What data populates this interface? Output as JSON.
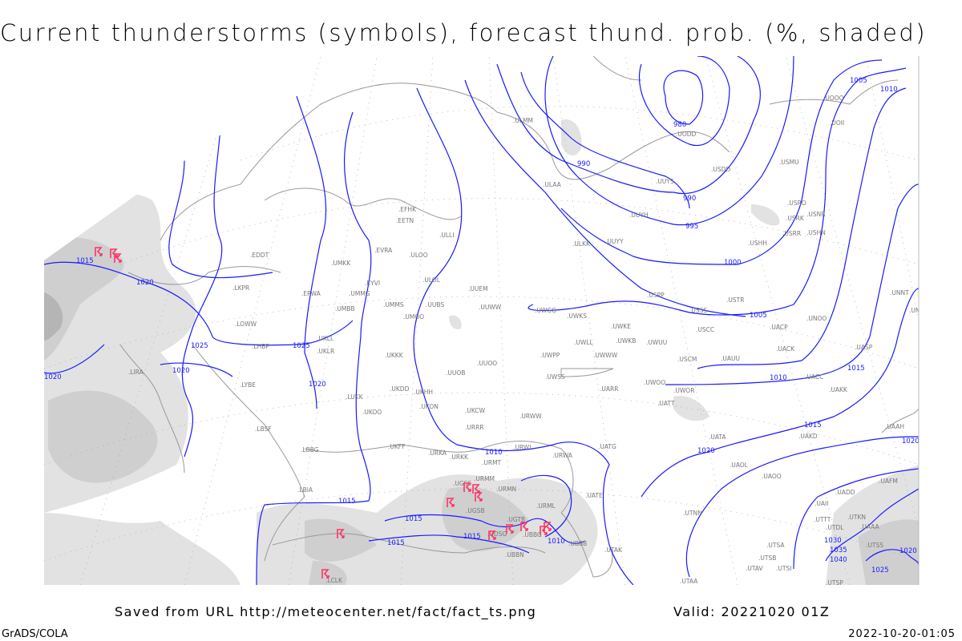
{
  "title": "Current thunderstorms (symbols), forecast thund. prob. (%, shaded)",
  "footer": {
    "saved": "Saved from URL http://meteocenter.net/fact/fact_ts.png",
    "valid": "Valid: 20221020 01Z",
    "software": "GrADS/COLA",
    "generated": "2022-10-20-01:05"
  },
  "colors": {
    "isobar": "#1a1aff",
    "thunderstorm_symbol": "#ff3366",
    "shading": "#cfcfcf",
    "coastline": "#999999"
  },
  "legend_symbol": "thunderstorm-symbol",
  "isobar_labels": [
    "1015",
    "990",
    "990",
    "980",
    "995",
    "1000",
    "1005",
    "1010",
    "1005",
    "1010",
    "1015",
    "1015",
    "1020",
    "1025",
    "1025",
    "1020",
    "1020",
    "1010",
    "1020",
    "1015",
    "1015",
    "1015",
    "1015",
    "1010",
    "1020",
    "1030",
    "1035",
    "1040",
    "1025",
    "1020",
    "1020"
  ],
  "stations": [
    "ULMM",
    "ULAA",
    "UUYS",
    "USDD",
    "USMU",
    "UODD",
    "UOOO",
    "UOII",
    "USRO",
    "USRK",
    "USNR",
    "USRR",
    "USHN",
    "USHH",
    "UUYH",
    "UUYY",
    "ULKK",
    "USPP",
    "USTR",
    "USSS",
    "UNNT",
    "UNBB",
    "EFHK",
    "EETN",
    "ULLI",
    "EVRA",
    "ULOO",
    "EYVI",
    "ULOL",
    "UMKK",
    "EDDT",
    "LKPR",
    "EPWA",
    "UMMG",
    "UMBB",
    "UMMS",
    "UMOO",
    "UUBS",
    "UUEM",
    "UUWW",
    "UWGG",
    "UWKS",
    "UWKE",
    "UWKB",
    "UWUU",
    "USCC",
    "UACP",
    "UNOO",
    "UACK",
    "UASP",
    "UKLL",
    "UKLR",
    "LHBP",
    "LOWW",
    "LIRA",
    "LYBE",
    "UKKK",
    "UUOB",
    "UUOO",
    "UWPP",
    "UWWW",
    "UWLL",
    "USCM",
    "UAUU",
    "UWSS",
    "UARR",
    "UWOO",
    "UWOR",
    "UACC",
    "UAKK",
    "LUKK",
    "UKHH",
    "UKDD",
    "UKON",
    "UKCW",
    "URWW",
    "UKOO",
    "URRR",
    "UATT",
    "LBSF",
    "LBBG",
    "UKFF",
    "URKA",
    "URKK",
    "URWI",
    "URWA",
    "UATG",
    "UATA",
    "UAOL",
    "UAAH",
    "UAKD",
    "URMT",
    "URMM",
    "URMN",
    "UGSS",
    "UGSB",
    "LBIA",
    "UATE",
    "UAOO",
    "UAFM",
    "UAII",
    "UADD",
    "UTTT",
    "UTKN",
    "UAAA",
    "UTDL",
    "UTSS",
    "UTSA",
    "UTSB",
    "UTAV",
    "UTSI",
    "UTAK",
    "UBBB",
    "UBBN",
    "UGTB",
    "UDSG",
    "UBBG",
    "URML",
    "UTNN",
    "UTAA",
    "LCLK",
    "UTSP"
  ]
}
